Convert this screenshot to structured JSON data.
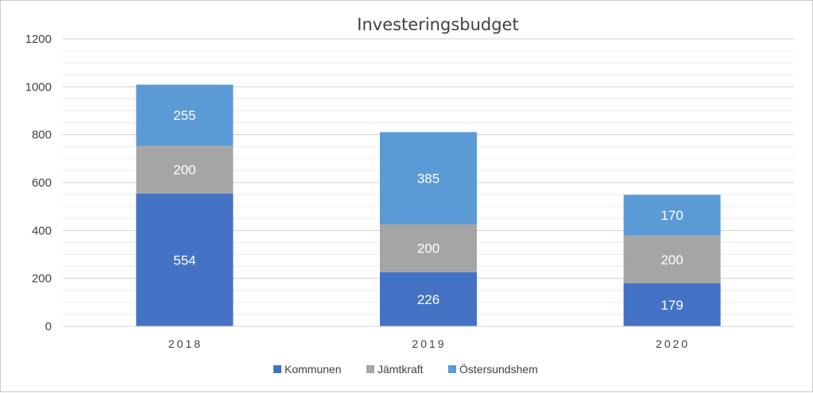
{
  "chart_data": {
    "type": "bar",
    "stacked": true,
    "title": "Investeringsbudget",
    "xlabel": "",
    "ylabel": "",
    "categories": [
      "2018",
      "2019",
      "2020"
    ],
    "ylim": [
      0,
      1200
    ],
    "yticks": [
      0,
      200,
      400,
      600,
      800,
      1000,
      1200
    ],
    "grid": true,
    "legend_position": "bottom",
    "series": [
      {
        "name": "Kommunen",
        "values": [
          554,
          226,
          179
        ],
        "color": "#4472C4"
      },
      {
        "name": "Jämtkraft",
        "values": [
          200,
          200,
          200
        ],
        "color": "#A5A5A5"
      },
      {
        "name": "Östersundshem",
        "values": [
          255,
          385,
          170
        ],
        "color": "#5B9BD5"
      }
    ]
  }
}
